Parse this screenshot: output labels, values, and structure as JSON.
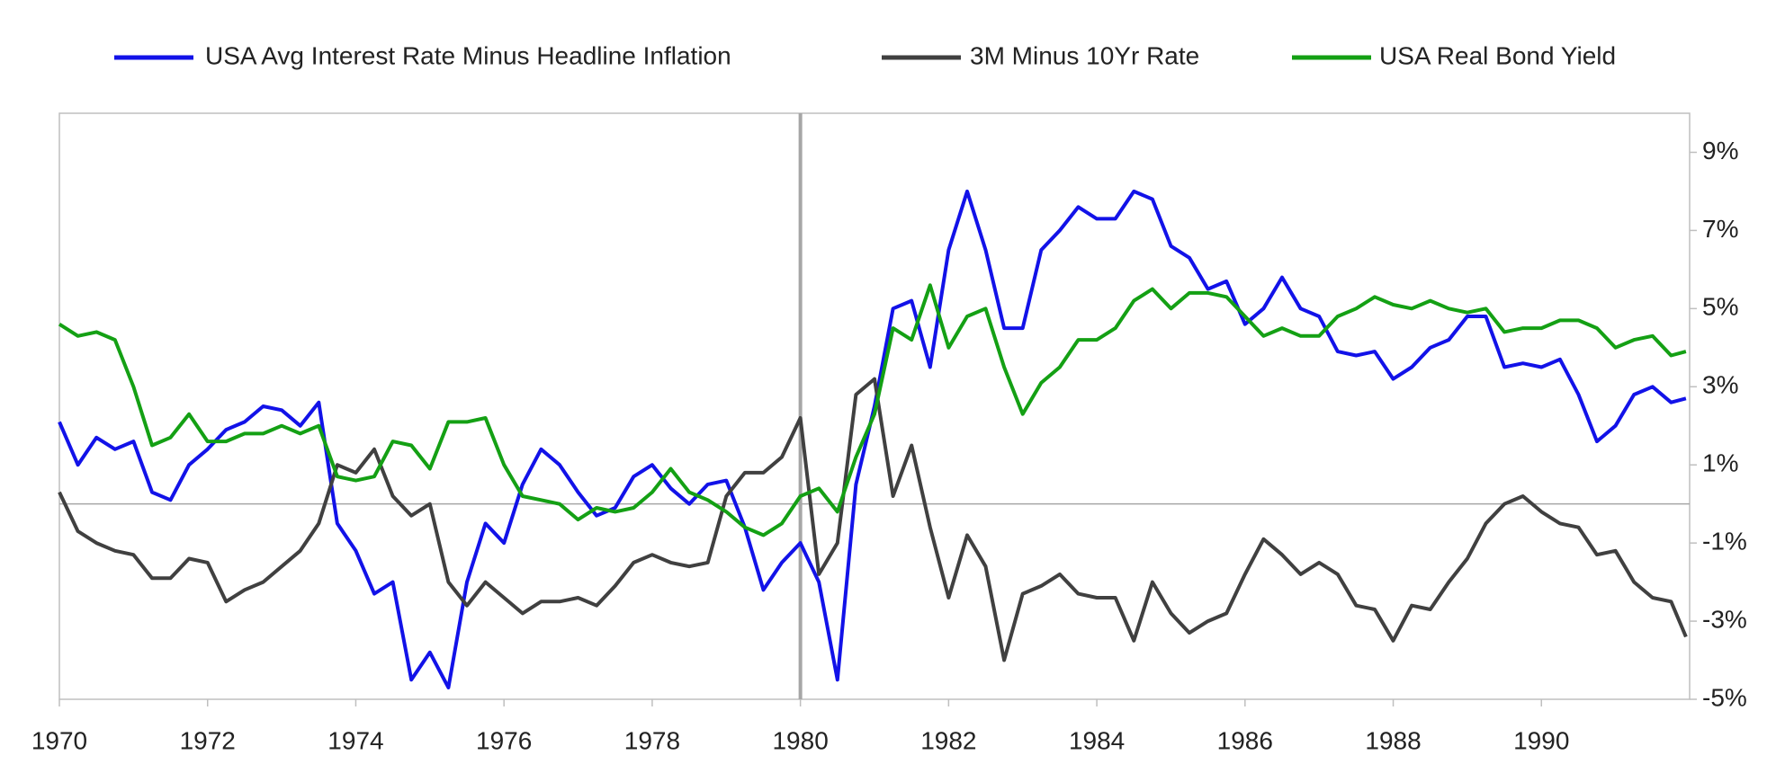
{
  "chart_data": {
    "type": "line",
    "legend": "top",
    "grid": false,
    "y_axis_side": "right",
    "vline": 1980,
    "vline_color": "#a6a6a6",
    "xlim": [
      1970,
      1992
    ],
    "xticks": [
      1970,
      1972,
      1974,
      1976,
      1978,
      1980,
      1982,
      1984,
      1986,
      1988,
      1990
    ],
    "ylim": [
      -5,
      10
    ],
    "yticks": [
      {
        "value": -5,
        "label": "-5%"
      },
      {
        "value": -3,
        "label": "-3%"
      },
      {
        "value": -1,
        "label": "-1%"
      },
      {
        "value": 1,
        "label": "1%"
      },
      {
        "value": 3,
        "label": "3%"
      },
      {
        "value": 5,
        "label": "5%"
      },
      {
        "value": 7,
        "label": "7%"
      },
      {
        "value": 9,
        "label": "9%"
      }
    ],
    "x": [
      1970,
      1970.25,
      1970.5,
      1970.75,
      1971,
      1971.25,
      1971.5,
      1971.75,
      1972,
      1972.25,
      1972.5,
      1972.75,
      1973,
      1973.25,
      1973.5,
      1973.75,
      1974,
      1974.25,
      1974.5,
      1974.75,
      1975,
      1975.25,
      1975.5,
      1975.75,
      1976,
      1976.25,
      1976.5,
      1976.75,
      1977,
      1977.25,
      1977.5,
      1977.75,
      1978,
      1978.25,
      1978.5,
      1978.75,
      1979,
      1979.25,
      1979.5,
      1979.75,
      1980,
      1980.25,
      1980.5,
      1980.75,
      1981,
      1981.25,
      1981.5,
      1981.75,
      1982,
      1982.25,
      1982.5,
      1982.75,
      1983,
      1983.25,
      1983.5,
      1983.75,
      1984,
      1984.25,
      1984.5,
      1984.75,
      1985,
      1985.25,
      1985.5,
      1985.75,
      1986,
      1986.25,
      1986.5,
      1986.75,
      1987,
      1987.25,
      1987.5,
      1987.75,
      1988,
      1988.25,
      1988.5,
      1988.75,
      1989,
      1989.25,
      1989.5,
      1989.75,
      1990,
      1990.25,
      1990.5,
      1990.75,
      1991,
      1991.25,
      1991.5,
      1991.75,
      1991.95
    ],
    "series": [
      {
        "name": "USA Avg Interest Rate Minus Headline Inflation",
        "color": "#1212e8",
        "values": [
          2.1,
          1.0,
          1.7,
          1.4,
          1.6,
          0.3,
          0.1,
          1.0,
          1.4,
          1.9,
          2.1,
          2.5,
          2.4,
          2.0,
          2.6,
          -0.5,
          -1.2,
          -2.3,
          -2.0,
          -4.5,
          -3.8,
          -4.7,
          -2.0,
          -0.5,
          -1.0,
          0.5,
          1.4,
          1.0,
          0.3,
          -0.3,
          -0.1,
          0.7,
          1.0,
          0.4,
          0.0,
          0.5,
          0.6,
          -0.6,
          -2.2,
          -1.5,
          -1.0,
          -2.0,
          -4.5,
          0.5,
          2.5,
          5.0,
          5.2,
          3.5,
          6.5,
          8.0,
          6.5,
          4.5,
          4.5,
          6.5,
          7.0,
          7.6,
          7.3,
          7.3,
          8.0,
          7.8,
          6.6,
          6.3,
          5.5,
          5.7,
          4.6,
          5.0,
          5.8,
          5.0,
          4.8,
          3.9,
          3.8,
          3.9,
          3.2,
          3.5,
          4.0,
          4.2,
          4.8,
          4.8,
          3.5,
          3.6,
          3.5,
          3.7,
          2.8,
          1.6,
          2.0,
          2.8,
          3.0,
          2.6,
          2.7
        ]
      },
      {
        "name": "3M Minus 10Yr Rate",
        "color": "#404040",
        "values": [
          0.3,
          -0.7,
          -1.0,
          -1.2,
          -1.3,
          -1.9,
          -1.9,
          -1.4,
          -1.5,
          -2.5,
          -2.2,
          -2.0,
          -1.6,
          -1.2,
          -0.5,
          1.0,
          0.8,
          1.4,
          0.2,
          -0.3,
          0.0,
          -2.0,
          -2.6,
          -2.0,
          -2.4,
          -2.8,
          -2.5,
          -2.5,
          -2.4,
          -2.6,
          -2.1,
          -1.5,
          -1.3,
          -1.5,
          -1.6,
          -1.5,
          0.2,
          0.8,
          0.8,
          1.2,
          2.2,
          -1.8,
          -1.0,
          2.8,
          3.2,
          0.2,
          1.5,
          -0.6,
          -2.4,
          -0.8,
          -1.6,
          -4.0,
          -2.3,
          -2.1,
          -1.8,
          -2.3,
          -2.4,
          -2.4,
          -3.5,
          -2.0,
          -2.8,
          -3.3,
          -3.0,
          -2.8,
          -1.8,
          -0.9,
          -1.3,
          -1.8,
          -1.5,
          -1.8,
          -2.6,
          -2.7,
          -3.5,
          -2.6,
          -2.7,
          -2.0,
          -1.4,
          -0.5,
          0.0,
          0.2,
          -0.2,
          -0.5,
          -0.6,
          -1.3,
          -1.2,
          -2.0,
          -2.4,
          -2.5,
          -3.4
        ]
      },
      {
        "name": "USA Real Bond Yield",
        "color": "#14a014",
        "values": [
          4.6,
          4.3,
          4.4,
          4.2,
          3.0,
          1.5,
          1.7,
          2.3,
          1.6,
          1.6,
          1.8,
          1.8,
          2.0,
          1.8,
          2.0,
          0.7,
          0.6,
          0.7,
          1.6,
          1.5,
          0.9,
          2.1,
          2.1,
          2.2,
          1.0,
          0.2,
          0.1,
          0.0,
          -0.4,
          -0.1,
          -0.2,
          -0.1,
          0.3,
          0.9,
          0.3,
          0.1,
          -0.2,
          -0.6,
          -0.8,
          -0.5,
          0.2,
          0.4,
          -0.2,
          1.2,
          2.3,
          4.5,
          4.2,
          5.6,
          4.0,
          4.8,
          5.0,
          3.5,
          2.3,
          3.1,
          3.5,
          4.2,
          4.2,
          4.5,
          5.2,
          5.5,
          5.0,
          5.4,
          5.4,
          5.3,
          4.8,
          4.3,
          4.5,
          4.3,
          4.3,
          4.8,
          5.0,
          5.3,
          5.1,
          5.0,
          5.2,
          5.0,
          4.9,
          5.0,
          4.4,
          4.5,
          4.5,
          4.7,
          4.7,
          4.5,
          4.0,
          4.2,
          4.3,
          3.8,
          3.9
        ]
      }
    ]
  }
}
